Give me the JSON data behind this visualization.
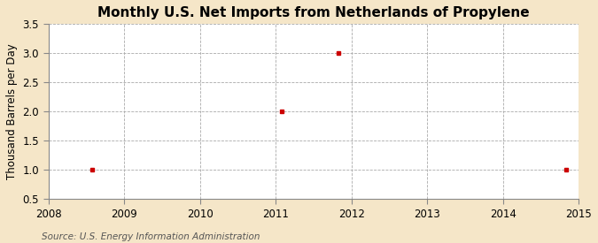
{
  "title": "Monthly U.S. Net Imports from Netherlands of Propylene",
  "ylabel": "Thousand Barrels per Day",
  "source": "Source: U.S. Energy Information Administration",
  "background_color": "#F5E6C8",
  "plot_background_color": "#FFFFFF",
  "xlim": [
    2008,
    2015
  ],
  "ylim": [
    0.5,
    3.5
  ],
  "yticks": [
    0.5,
    1.0,
    1.5,
    2.0,
    2.5,
    3.0,
    3.5
  ],
  "ytick_labels": [
    "0.5",
    "1.0",
    "1.5",
    "2.0",
    "2.5",
    "3.0",
    "3.5"
  ],
  "xticks": [
    2008,
    2009,
    2010,
    2011,
    2012,
    2013,
    2014,
    2015
  ],
  "xtick_labels": [
    "2008",
    "2009",
    "2010",
    "2011",
    "2012",
    "2013",
    "2014",
    "2015"
  ],
  "data_x": [
    2008.58,
    2011.08,
    2011.83,
    2014.83
  ],
  "data_y": [
    1.0,
    2.0,
    3.0,
    1.0
  ],
  "marker_color": "#CC0000",
  "marker_style": "s",
  "marker_size": 3.5,
  "grid_color": "#AAAAAA",
  "grid_linestyle": "--",
  "title_fontsize": 11,
  "axis_label_fontsize": 8.5,
  "tick_fontsize": 8.5,
  "source_fontsize": 7.5
}
